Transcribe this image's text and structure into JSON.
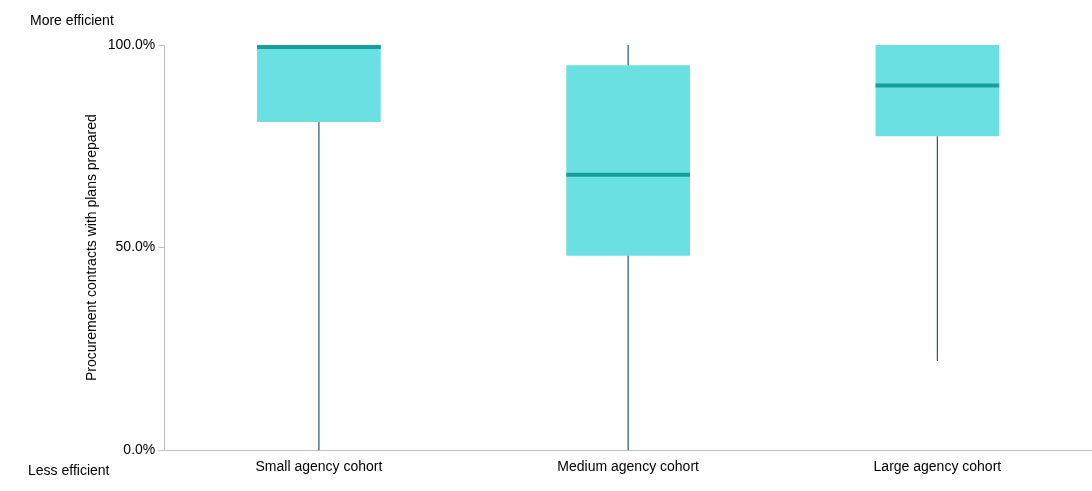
{
  "chart_data": {
    "type": "box",
    "ylabel": "Procurement contracts with plans prepared",
    "categories": [
      "Small agency cohort",
      "Medium agency cohort",
      "Large agency cohort"
    ],
    "color": "#6be0e3",
    "boxes": [
      {
        "low": 0,
        "q1": 81,
        "median": 99.5,
        "q3": 100,
        "high": 100
      },
      {
        "low": 0,
        "q1": 48,
        "median": 68,
        "q3": 95,
        "high": 100
      },
      {
        "low": 22,
        "q1": 77.5,
        "median": 90,
        "q3": 100,
        "high": 100
      }
    ],
    "ylim": [
      0,
      100
    ],
    "yticks": [
      {
        "value": 0,
        "label": "0.0%"
      },
      {
        "value": 50,
        "label": "50.0%"
      },
      {
        "value": 100,
        "label": "100.0%"
      }
    ],
    "grid": false,
    "legend": false,
    "annotations": [
      "More efficient",
      "Less efficient"
    ]
  }
}
